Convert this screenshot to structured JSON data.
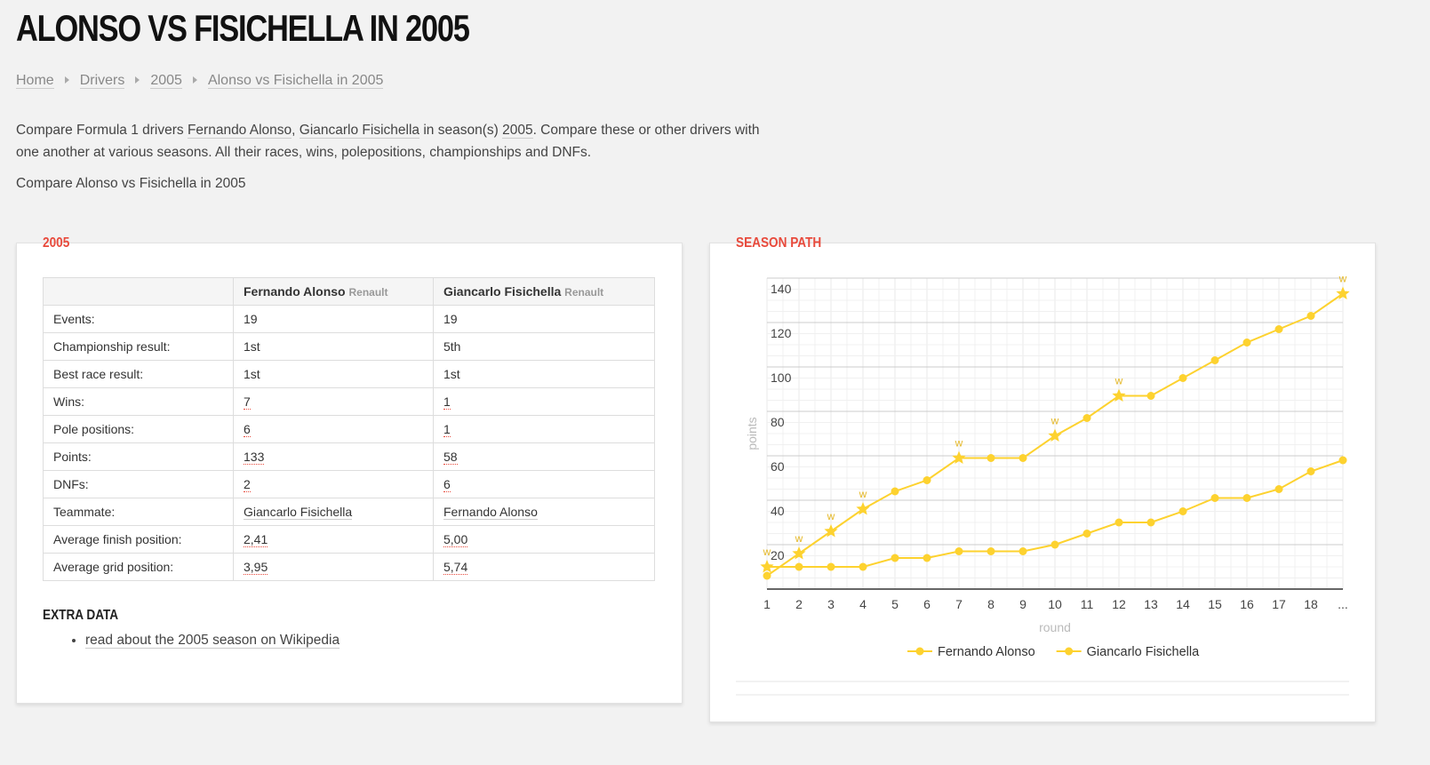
{
  "header": {
    "title": "ALONSO VS FISICHELLA IN 2005"
  },
  "breadcrumbs": [
    "Home",
    "Drivers",
    "2005",
    "Alonso vs Fisichella in 2005"
  ],
  "intro": [
    "Compare Formula 1 drivers ",
    "Fernando Alonso",
    ", ",
    "Giancarlo Fisichella",
    " in season(s) ",
    "2005",
    ". Compare these or other drivers with one another at various seasons. All their races, wins, polepositions, championships and DNFs."
  ],
  "subtitle": "Compare Alonso vs Fisichella in 2005",
  "stats": {
    "heading": "2005",
    "table": {
      "header": [
        {
          "name": "Fernando Alonso",
          "team": "Renault"
        },
        {
          "name": "Giancarlo Fisichella",
          "team": "Renault"
        }
      ],
      "rows": [
        [
          "Events:",
          "19",
          "19"
        ],
        [
          "Championship result:",
          "1st",
          "5th"
        ],
        [
          "Best race result:",
          "1st",
          "1st"
        ],
        [
          "Wins:",
          "7",
          "1"
        ],
        [
          "Pole positions:",
          "6",
          "1"
        ],
        [
          "Points:",
          "133",
          "58"
        ],
        [
          "DNFs:",
          "2",
          "6"
        ],
        [
          "Teammate:",
          "Giancarlo Fisichella",
          "Fernando Alonso"
        ],
        [
          "Average finish position:",
          "2,41",
          "5,00"
        ],
        [
          "Average grid position:",
          "3,95",
          "5,74"
        ]
      ]
    }
  },
  "extra": {
    "heading": "EXTRA DATA",
    "links": [
      "read about the 2005 season on Wikipedia"
    ]
  },
  "chart_heading": "SEASON PATH",
  "chart_data": {
    "type": "line",
    "x_label": "round",
    "y_label": "points",
    "categories": [
      "1",
      "2",
      "3",
      "4",
      "5",
      "6",
      "7",
      "8",
      "9",
      "10",
      "11",
      "12",
      "13",
      "14",
      "15",
      "16",
      "17",
      "18",
      "..."
    ],
    "series": [
      {
        "name": "Fernando Alonso",
        "color": "#fdd22f",
        "values": [
          6,
          16,
          26,
          36,
          44,
          49,
          59,
          59,
          59,
          69,
          77,
          87,
          87,
          95,
          103,
          111,
          117,
          123,
          133
        ],
        "point_labels": [
          null,
          "w",
          "w",
          "w",
          null,
          null,
          "w",
          null,
          null,
          "w",
          null,
          "w",
          null,
          null,
          null,
          null,
          null,
          null,
          "w"
        ]
      },
      {
        "name": "Giancarlo Fisichella",
        "color": "#fdd22f",
        "values": [
          10,
          10,
          10,
          10,
          14,
          14,
          17,
          17,
          17,
          20,
          25,
          30,
          30,
          35,
          41,
          41,
          45,
          53,
          58
        ],
        "point_labels": [
          "w",
          null,
          null,
          null,
          null,
          null,
          null,
          null,
          null,
          null,
          null,
          null,
          null,
          null,
          null,
          null,
          null,
          null,
          null
        ]
      }
    ],
    "ylim": [
      0,
      140
    ],
    "yticks": [
      20,
      40,
      60,
      80,
      100,
      120,
      140
    ],
    "grid": true,
    "legend": "bottom"
  }
}
